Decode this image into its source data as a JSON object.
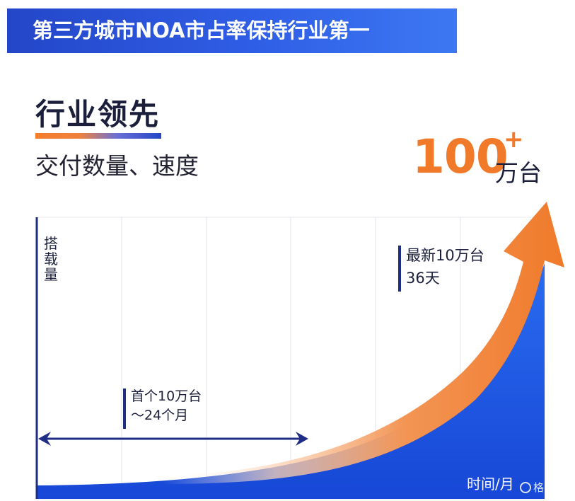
{
  "banner": {
    "title": "第三方城市NOA市占率保持行业第一"
  },
  "heading": {
    "title": "行业领先",
    "subtitle": "交付数量、速度"
  },
  "highlight": {
    "number": "100",
    "plus": "+",
    "unit": "万台"
  },
  "chart_data": {
    "type": "area",
    "title": "",
    "xlabel": "时间/月",
    "ylabel": "搭载量",
    "grid": true,
    "x_ticks_shown": false,
    "y_ticks_shown": false,
    "annotations": {
      "first_milestone": {
        "line1": "首个10万台",
        "line2": "～24个月"
      },
      "latest_milestone": {
        "line1": "最新10万台",
        "line2": "36天"
      }
    }
  },
  "watermark": {
    "text": "格隆汇"
  },
  "colors": {
    "banner": "#2f5ee6",
    "area": "#1f5fe6",
    "arrow": "#f07a2a",
    "highlight": "#f07a2a",
    "annotation_bar": "#1f2e84",
    "axis": "#1f2e84"
  }
}
